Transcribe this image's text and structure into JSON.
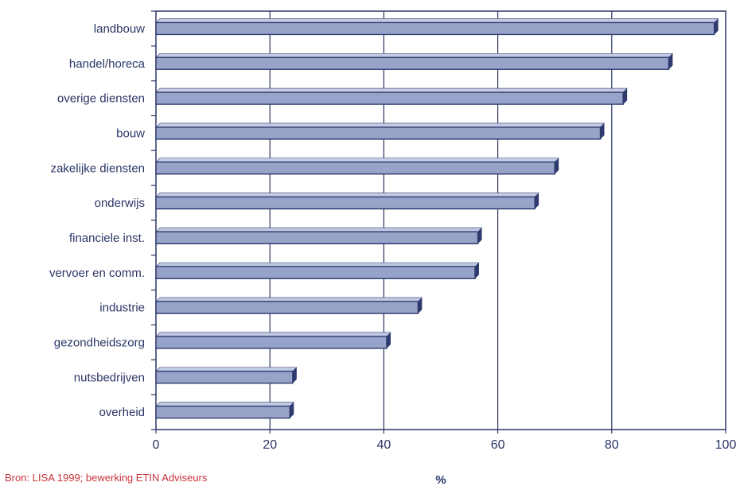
{
  "chart_data": {
    "type": "bar",
    "orientation": "horizontal",
    "categories": [
      "landbouw",
      "handel/horeca",
      "overige diensten",
      "bouw",
      "zakelijke diensten",
      "onderwijs",
      "financiele inst.",
      "vervoer en comm.",
      "industrie",
      "gezondheidszorg",
      "nutsbedrijven",
      "overheid"
    ],
    "values": [
      98,
      90,
      82,
      78,
      70,
      66.5,
      56.5,
      56,
      46,
      40.5,
      24,
      23.5
    ],
    "xlabel": "%",
    "xlim": [
      0,
      100
    ],
    "xticks": [
      0,
      20,
      40,
      60,
      80,
      100
    ],
    "grid": true,
    "colors": {
      "bar_fill": "#98a3c9",
      "bar_top": "#c3cae3",
      "bar_shadow": "#2e3a6e",
      "axis": "#2b3566",
      "grid": "#2b3566"
    }
  },
  "source": "Bron: LISA 1999; bewerking ETIN Adviseurs"
}
